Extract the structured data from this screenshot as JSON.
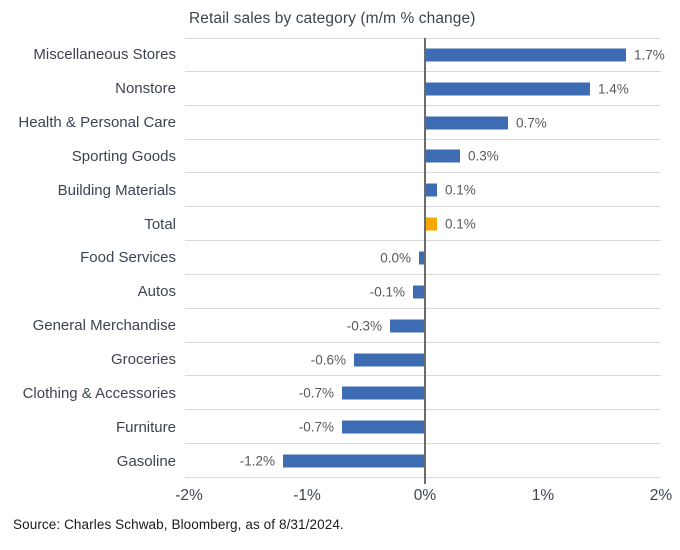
{
  "title": "Retail sales by category (m/m % change)",
  "source": "Source: Charles Schwab, Bloomberg, as of 8/31/2024.",
  "colors": {
    "bar_blue": "#3E6CB2",
    "bar_orange": "#F5A800",
    "text_dark": "#3C4453",
    "value_gray": "#595959",
    "gridline": "#D9D9D9",
    "zero_line": "#6B6B6B",
    "source_text": "#1A1A1A"
  },
  "chart_data": {
    "type": "bar",
    "orientation": "horizontal",
    "title": "Retail sales by category (m/m % change)",
    "categories": [
      "Miscellaneous Stores",
      "Nonstore",
      "Health & Personal Care",
      "Sporting Goods",
      "Building Materials",
      "Total",
      "Food Services",
      "Autos",
      "General Merchandise",
      "Groceries",
      "Clothing & Accessories",
      "Furniture",
      "Gasoline"
    ],
    "values": [
      1.7,
      1.4,
      0.7,
      0.3,
      0.1,
      0.1,
      0.0,
      -0.1,
      -0.3,
      -0.6,
      -0.7,
      -0.7,
      -1.2
    ],
    "value_labels": [
      "1.7%",
      "1.4%",
      "0.7%",
      "0.3%",
      "0.1%",
      "0.1%",
      "0.0%",
      "-0.1%",
      "-0.3%",
      "-0.6%",
      "-0.7%",
      "-0.7%",
      "-1.2%"
    ],
    "highlight_index": 5,
    "highlight_category": "Total",
    "xlabel": "",
    "ylabel": "",
    "xlim": [
      -2,
      2
    ],
    "x_ticks": [
      {
        "value": -2,
        "label": "-2%"
      },
      {
        "value": -1,
        "label": "-1%"
      },
      {
        "value": 0,
        "label": "0%"
      },
      {
        "value": 1,
        "label": "1%"
      },
      {
        "value": 2,
        "label": "2%"
      }
    ],
    "grid": "horizontal row separators on",
    "legend": false
  }
}
